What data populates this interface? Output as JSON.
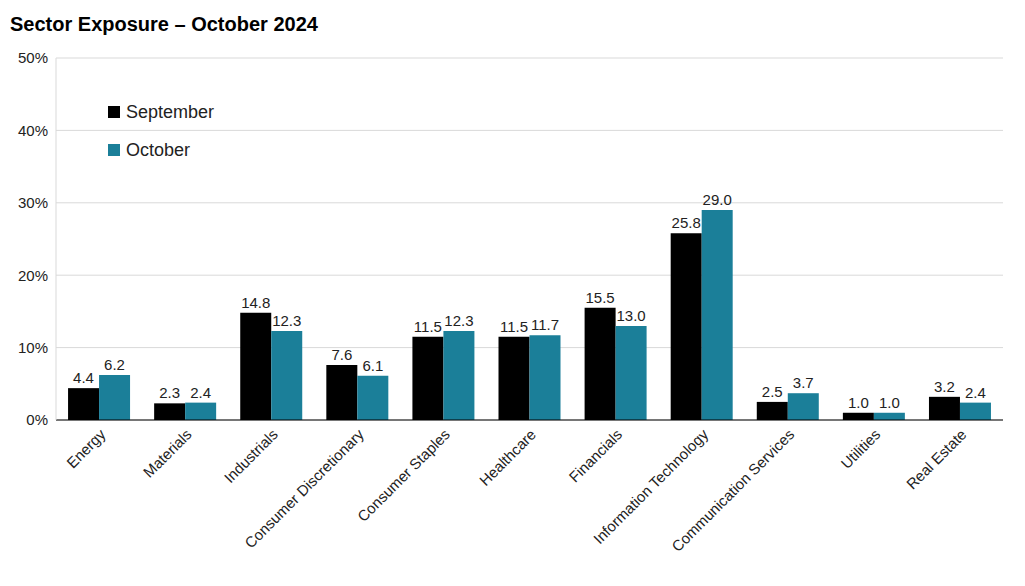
{
  "chart_data": {
    "type": "bar",
    "title": "Sector Exposure – October 2024",
    "categories": [
      "Energy",
      "Materials",
      "Industrials",
      "Consumer Discretionary",
      "Consumer Staples",
      "Healthcare",
      "Financials",
      "Information Technology",
      "Communication Services",
      "Utilities",
      "Real Estate"
    ],
    "series": [
      {
        "name": "September",
        "color": "#000000",
        "values": [
          4.4,
          2.3,
          14.8,
          7.6,
          11.5,
          11.5,
          15.5,
          25.8,
          2.5,
          1.0,
          3.2
        ],
        "value_labels": [
          "4.4",
          "2.3",
          "14.8",
          "7.6",
          "11.5",
          "11.5",
          "15.5",
          "25.8",
          "2.5",
          "1.0",
          "3.2"
        ]
      },
      {
        "name": "October",
        "color": "#1b7f99",
        "values": [
          6.2,
          2.4,
          12.3,
          6.1,
          12.3,
          11.7,
          13.0,
          29.0,
          3.7,
          1.0,
          2.4
        ],
        "value_labels": [
          "6.2",
          "2.4",
          "12.3",
          "6.1",
          "12.3",
          "11.7",
          "13.0",
          "29.0",
          "3.7",
          "1.0",
          "2.4"
        ]
      }
    ],
    "ylim": [
      0,
      50
    ],
    "yticks": [
      {
        "value": 0,
        "label": "0%"
      },
      {
        "value": 10,
        "label": "10%"
      },
      {
        "value": 20,
        "label": "20%"
      },
      {
        "value": 30,
        "label": "30%"
      },
      {
        "value": 40,
        "label": "40%"
      },
      {
        "value": 50,
        "label": "50%"
      }
    ],
    "grid": true,
    "legend": "upper left",
    "data_labels": true
  }
}
